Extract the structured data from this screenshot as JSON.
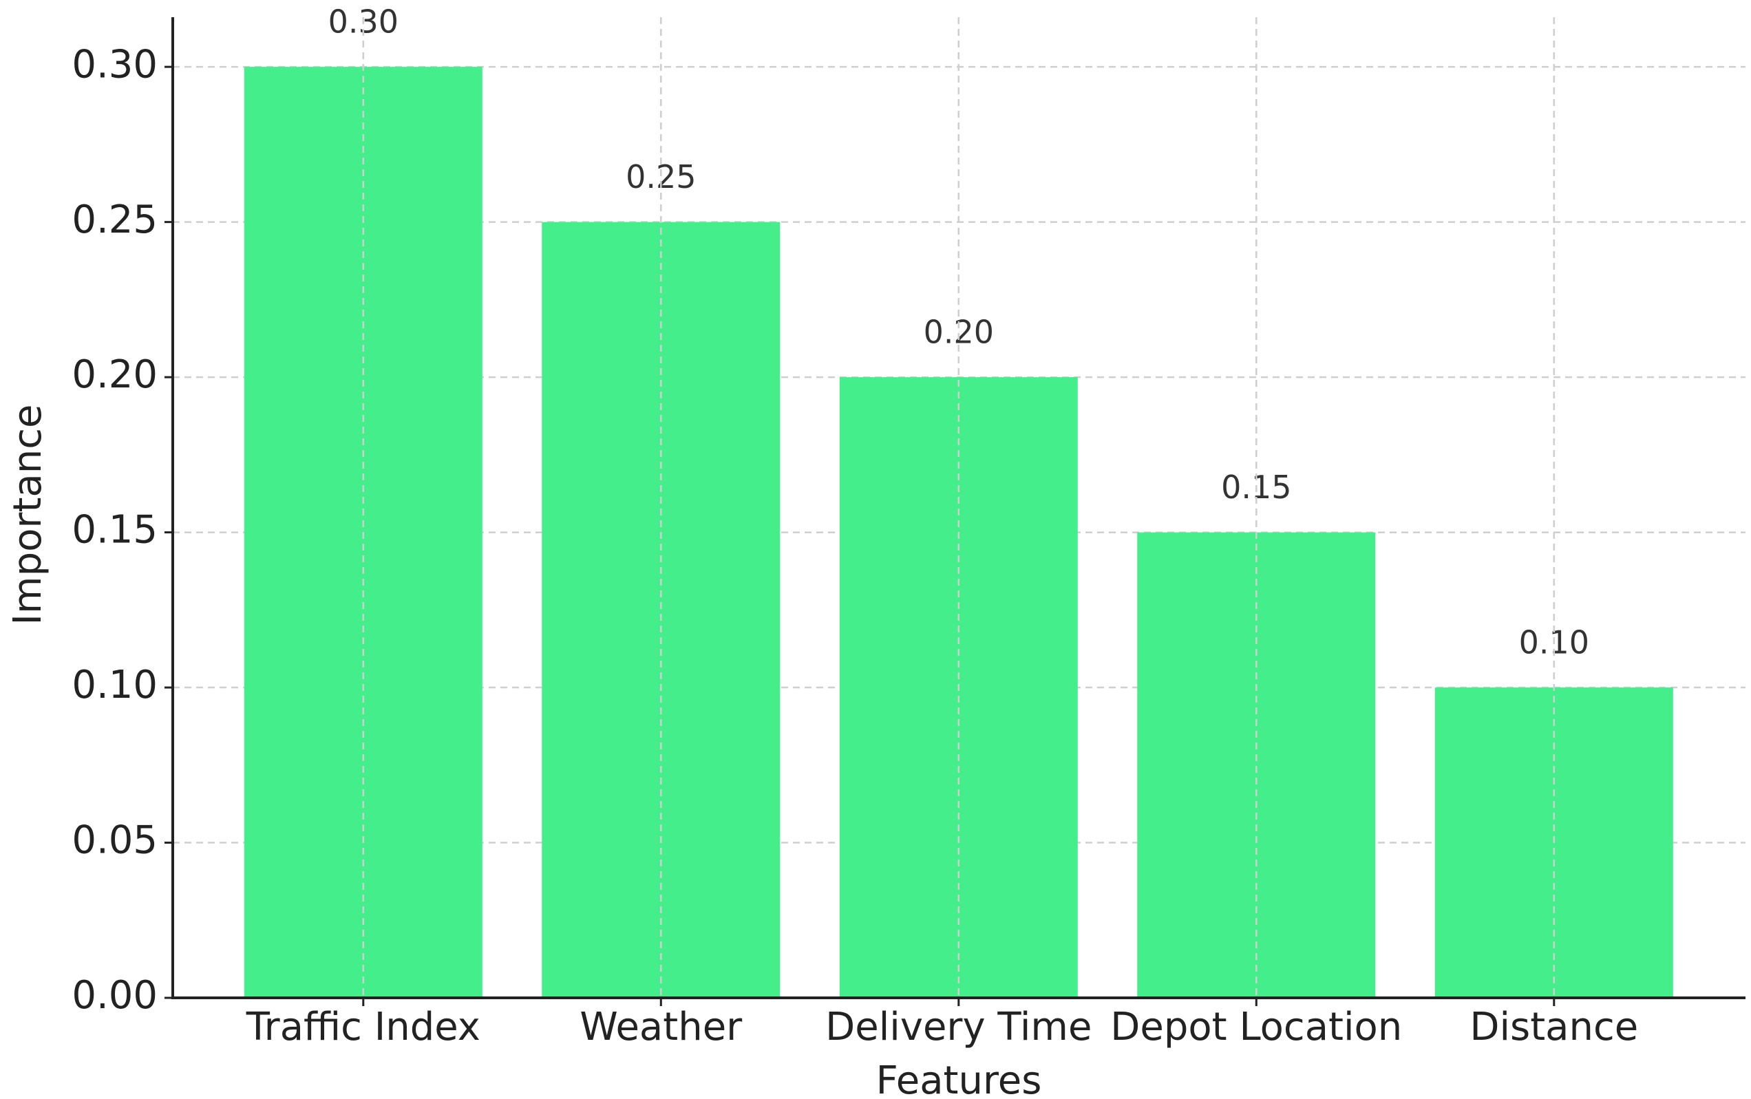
{
  "chart_data": {
    "type": "bar",
    "x_label": "Features",
    "y_label": "Importance",
    "categories": [
      "Traffic Index",
      "Weather",
      "Delivery Time",
      "Depot Location",
      "Distance"
    ],
    "values": [
      0.3,
      0.25,
      0.2,
      0.15,
      0.1
    ],
    "value_labels": [
      "0.30",
      "0.25",
      "0.20",
      "0.15",
      "0.10"
    ],
    "color": "#44ee8a",
    "ylim": [
      0,
      0.316
    ],
    "yticks": [
      {
        "value": 0,
        "label": "0.00"
      },
      {
        "value": 0.05,
        "label": "0.05"
      },
      {
        "value": 0.1,
        "label": "0.10"
      },
      {
        "value": 0.15,
        "label": "0.15"
      },
      {
        "value": 0.2,
        "label": "0.20"
      },
      {
        "value": 0.25,
        "label": "0.25"
      },
      {
        "value": 0.3,
        "label": "0.30"
      }
    ],
    "grid": true
  }
}
